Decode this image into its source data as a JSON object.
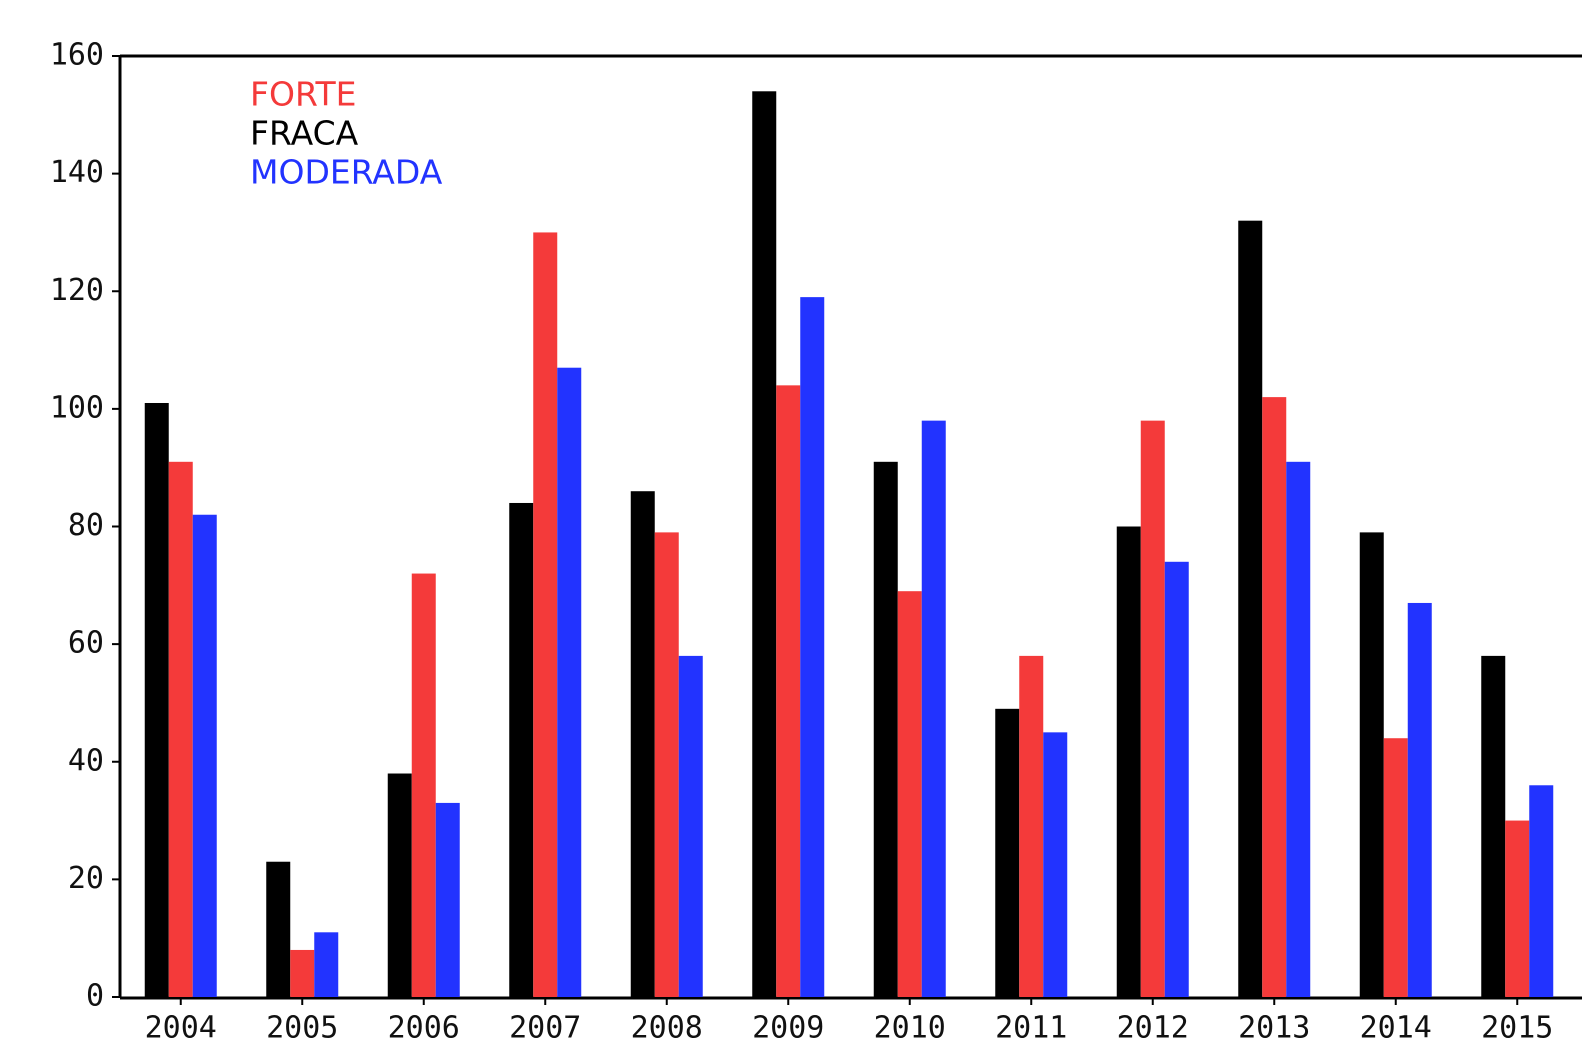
{
  "chart_data": {
    "type": "bar",
    "categories": [
      "2004",
      "2005",
      "2006",
      "2007",
      "2008",
      "2009",
      "2010",
      "2011",
      "2012",
      "2013",
      "2014",
      "2015"
    ],
    "series": [
      {
        "name": "FRACA",
        "color": "#000000",
        "values": [
          101,
          23,
          38,
          84,
          86,
          154,
          91,
          49,
          80,
          132,
          79,
          58
        ]
      },
      {
        "name": "FORTE",
        "color": "#f43a3a",
        "values": [
          91,
          8,
          72,
          130,
          79,
          104,
          69,
          58,
          98,
          102,
          44,
          30
        ]
      },
      {
        "name": "MODERADA",
        "color": "#2233ff",
        "values": [
          82,
          11,
          33,
          107,
          58,
          119,
          98,
          45,
          74,
          91,
          67,
          36
        ]
      }
    ],
    "legend_order": [
      1,
      0,
      2
    ],
    "ylim": [
      0,
      160
    ],
    "yticks": [
      0,
      20,
      40,
      60,
      80,
      100,
      120,
      140,
      160
    ]
  }
}
